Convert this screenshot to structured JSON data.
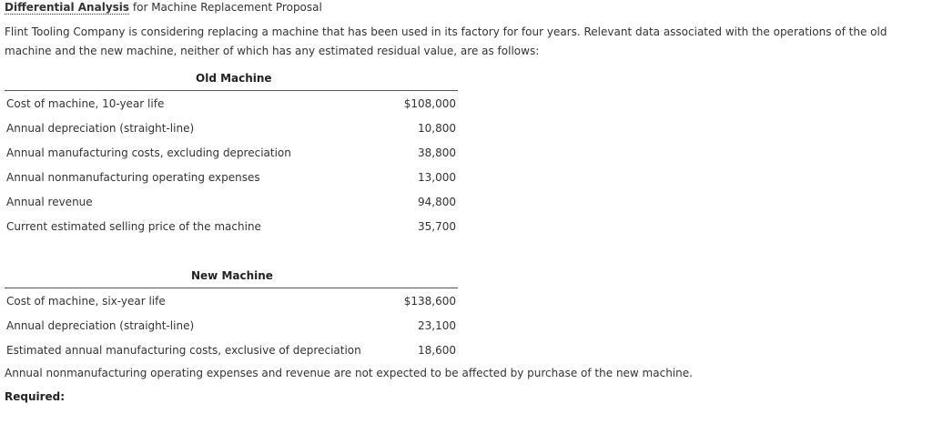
{
  "header": {
    "title_bold": "Differential Analysis",
    "title_rest": "for Machine Replacement Proposal"
  },
  "intro": [
    "Flint Tooling Company is considering replacing a machine that has been used in its factory for four years. Relevant data associated with the operations of the old",
    "machine and the new machine, neither of which has any estimated residual value, are as follows:"
  ],
  "old_machine": {
    "heading": "Old Machine",
    "rows": [
      [
        "Cost of machine, 10-year life",
        "$108,000"
      ],
      [
        "Annual depreciation (straight-line)",
        "10,800"
      ],
      [
        "Annual manufacturing costs, excluding depreciation",
        "38,800"
      ],
      [
        "Annual nonmanufacturing operating expenses",
        "13,000"
      ],
      [
        "Annual revenue",
        "94,800"
      ],
      [
        "Current estimated selling price of the machine",
        "35,700"
      ]
    ]
  },
  "new_machine": {
    "heading": "New Machine",
    "rows": [
      [
        "Cost of machine, six-year life",
        "$138,600"
      ],
      [
        "Annual depreciation (straight-line)",
        "23,100"
      ],
      [
        "Estimated annual manufacturing costs, exclusive of depreciation",
        "18,600"
      ]
    ]
  },
  "note": "Annual nonmanufacturing operating expenses and revenue are not expected to be affected by purchase of the new machine.",
  "required": "Required:"
}
